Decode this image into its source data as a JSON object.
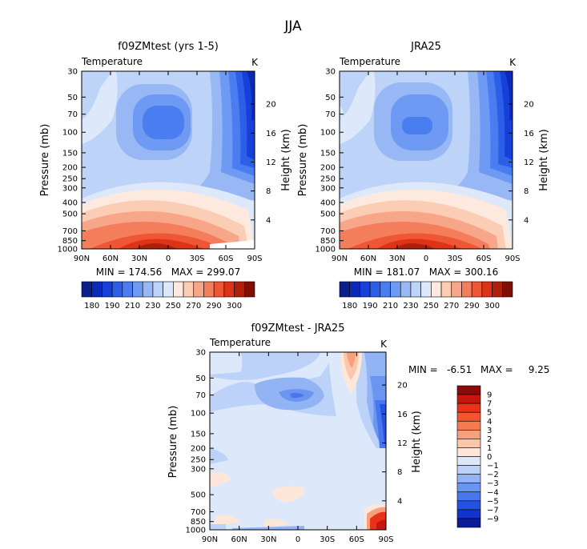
{
  "page_title": "JJA",
  "chart_data": [
    {
      "type": "heatmap",
      "title": "f09ZMtest (yrs 1-5)",
      "variable": "Temperature",
      "units": "K",
      "ylabel": "Pressure (mb)",
      "ylabel_right": "Height (km)",
      "x_ticks": [
        "90N",
        "60N",
        "30N",
        "0",
        "30S",
        "60S",
        "90S"
      ],
      "y_ticks": [
        "30",
        "50",
        "70",
        "100",
        "150",
        "200",
        "250",
        "300",
        "400",
        "500",
        "700",
        "850",
        "1000"
      ],
      "right_ticks": [
        "20",
        "16",
        "12",
        "8",
        "4"
      ],
      "stats": "MIN = 174.56   MAX = 299.07",
      "colorbar_labels": [
        "180",
        "190",
        "210",
        "230",
        "250",
        "270",
        "290",
        "300"
      ],
      "colorbar_colors": [
        "#0a1e8c",
        "#0b2ab8",
        "#1740d9",
        "#2d5ee8",
        "#4a7ef0",
        "#6f9af3",
        "#97b8f5",
        "#bdd3f8",
        "#dde8fb",
        "#fde9dd",
        "#fbcdb5",
        "#f8a68a",
        "#f47d5c",
        "#ef5634",
        "#de3317",
        "#b01f0c",
        "#800e04"
      ]
    },
    {
      "type": "heatmap",
      "title": "JRA25",
      "variable": "Temperature",
      "units": "K",
      "ylabel": "Pressure (mb)",
      "ylabel_right": "Height (km)",
      "x_ticks": [
        "90N",
        "60N",
        "30N",
        "0",
        "30S",
        "60S",
        "90S"
      ],
      "y_ticks": [
        "30",
        "50",
        "70",
        "100",
        "150",
        "200",
        "250",
        "300",
        "400",
        "500",
        "700",
        "850",
        "1000"
      ],
      "right_ticks": [
        "20",
        "16",
        "12",
        "8",
        "4"
      ],
      "stats": "MIN = 181.07   MAX = 300.16",
      "colorbar_labels": [
        "180",
        "190",
        "210",
        "230",
        "250",
        "270",
        "290",
        "300"
      ],
      "colorbar_colors": [
        "#0a1e8c",
        "#0b2ab8",
        "#1740d9",
        "#2d5ee8",
        "#4a7ef0",
        "#6f9af3",
        "#97b8f5",
        "#bdd3f8",
        "#dde8fb",
        "#fde9dd",
        "#fbcdb5",
        "#f8a68a",
        "#f47d5c",
        "#ef5634",
        "#de3317",
        "#b01f0c",
        "#800e04"
      ]
    },
    {
      "type": "heatmap",
      "title": "f09ZMtest - JRA25",
      "variable": "Temperature",
      "units": "K",
      "ylabel": "Pressure (mb)",
      "ylabel_right": "Height (km)",
      "x_ticks": [
        "90N",
        "60N",
        "30N",
        "0",
        "30S",
        "60S",
        "90S"
      ],
      "y_ticks": [
        "30",
        "50",
        "70",
        "100",
        "150",
        "200",
        "250",
        "300",
        "500",
        "700",
        "850",
        "1000"
      ],
      "right_ticks": [
        "20",
        "16",
        "12",
        "8",
        "4"
      ],
      "stats_min": "MIN =   -6.51",
      "stats_max": "MAX =     9.25",
      "colorbar_labels": [
        "9",
        "7",
        "5",
        "4",
        "3",
        "2",
        "1",
        "0",
        "−1",
        "−2",
        "−3",
        "−4",
        "−5",
        "−7",
        "−9"
      ],
      "colorbar_colors": [
        "#8c0a0a",
        "#c8160e",
        "#e8321a",
        "#f25530",
        "#f57a52",
        "#f8a07e",
        "#fbc6aa",
        "#fde7d8",
        "#dde8fb",
        "#bcd2f8",
        "#92b3f4",
        "#6b95f1",
        "#4876ec",
        "#2552e2",
        "#1233cc",
        "#0a1c98"
      ]
    }
  ]
}
